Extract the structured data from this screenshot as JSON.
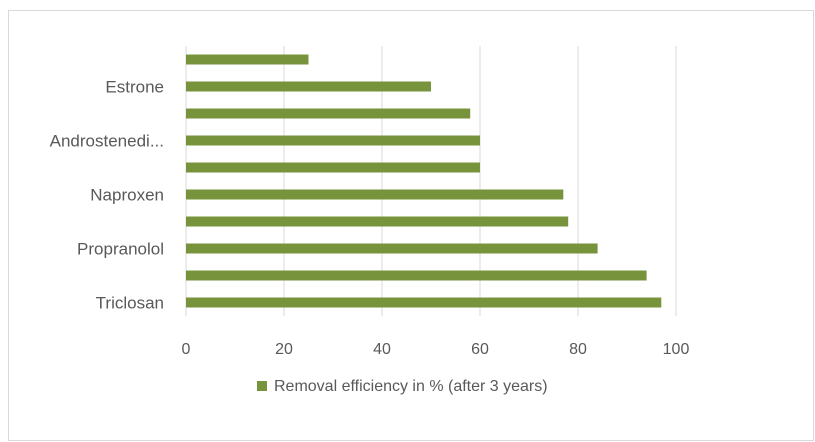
{
  "chart_data": {
    "type": "bar",
    "orientation": "horizontal",
    "categories": [
      "Triclosan",
      "",
      "Propranolol",
      "",
      "Naproxen",
      "",
      "Androstenedi...",
      "",
      "Estrone",
      ""
    ],
    "series": [
      {
        "name": "Removal efficiency in % (after 3 years)",
        "color": "#77933c",
        "values": [
          97,
          94,
          84,
          78,
          77,
          60,
          60,
          58,
          50,
          25
        ]
      }
    ],
    "xlim": [
      0,
      100
    ],
    "xticks": [
      "0",
      "20",
      "40",
      "60",
      "80",
      "100"
    ],
    "grid": true,
    "legend_position": "bottom"
  }
}
